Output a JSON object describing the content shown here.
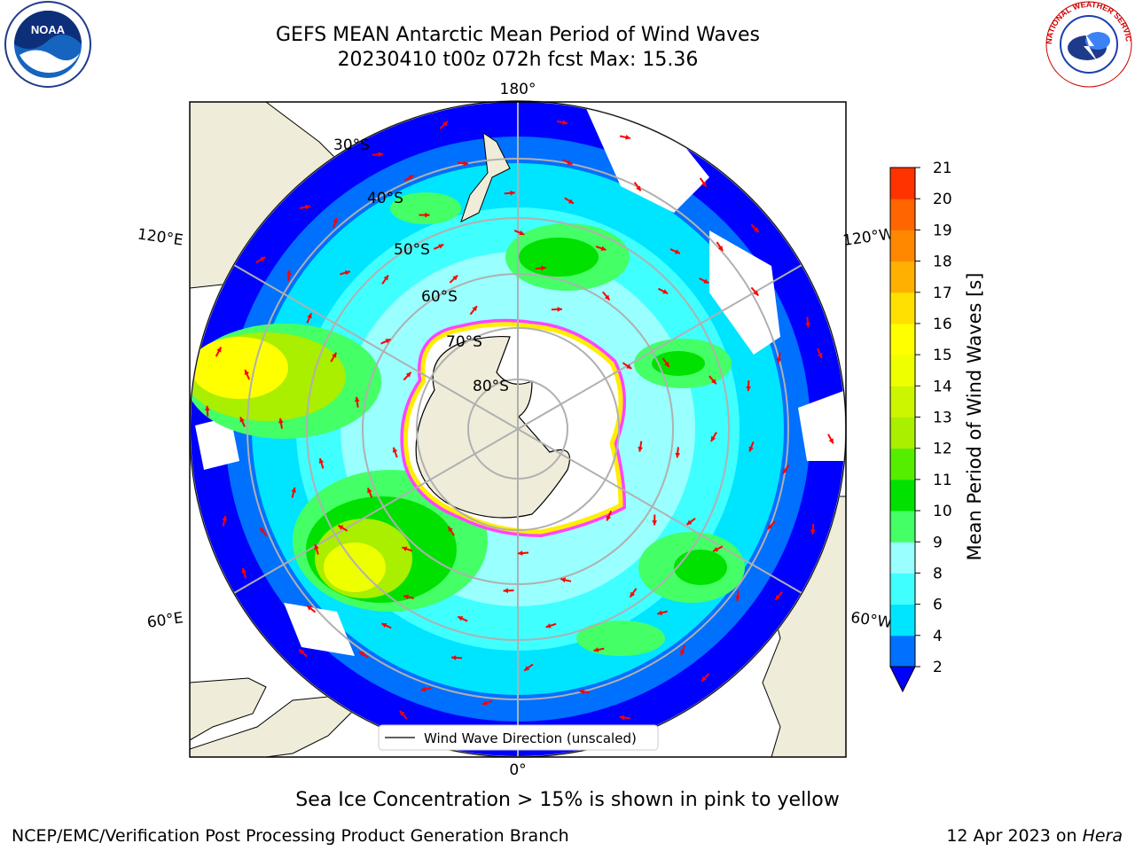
{
  "title": {
    "line1": "GEFS MEAN Antarctic Mean Period of Wind Waves",
    "line2": "20230410 t00z 072h fcst   Max: 15.36"
  },
  "map": {
    "projection": "south-polar-stereographic",
    "longitude_labels": {
      "top": "180°",
      "bottom": "0°",
      "upper_left": "120°E",
      "upper_right": "120°W",
      "lower_left": "60°E",
      "lower_right": "60°W"
    },
    "latitude_labels": [
      "30°S",
      "40°S",
      "50°S",
      "60°S",
      "70°S",
      "80°S"
    ],
    "legend_label": "Wind Wave Direction (unscaled)",
    "arrow_color": "#ff0000",
    "land_color": "#efedd9",
    "ice_colors": [
      "#ff44ff",
      "#ffee00"
    ]
  },
  "colorbar": {
    "label": "Mean Period of Wind Waves [s]",
    "ticks": [
      "2",
      "4",
      "6",
      "8",
      "9",
      "10",
      "11",
      "12",
      "13",
      "14",
      "15",
      "16",
      "17",
      "18",
      "19",
      "20",
      "21"
    ],
    "colors": [
      "#0070ff",
      "#00e5ff",
      "#40ffff",
      "#99ffff",
      "#44ff66",
      "#00e100",
      "#55ee00",
      "#aaee00",
      "#ccf500",
      "#eeff00",
      "#ffff00",
      "#ffe000",
      "#ffb000",
      "#ff8800",
      "#ff6600",
      "#ff3300"
    ],
    "under_color": "#0000ff"
  },
  "footer": {
    "note": "Sea Ice Concentration > 15% is shown in pink to yellow",
    "left": "NCEP/EMC/Verification Post Processing Product Generation Branch",
    "right_date": "12 Apr 2023 on ",
    "right_machine": "Hera"
  },
  "logos": {
    "noaa_text": "NOAA",
    "nws_text": "NATIONAL WEATHER SERVICE"
  }
}
